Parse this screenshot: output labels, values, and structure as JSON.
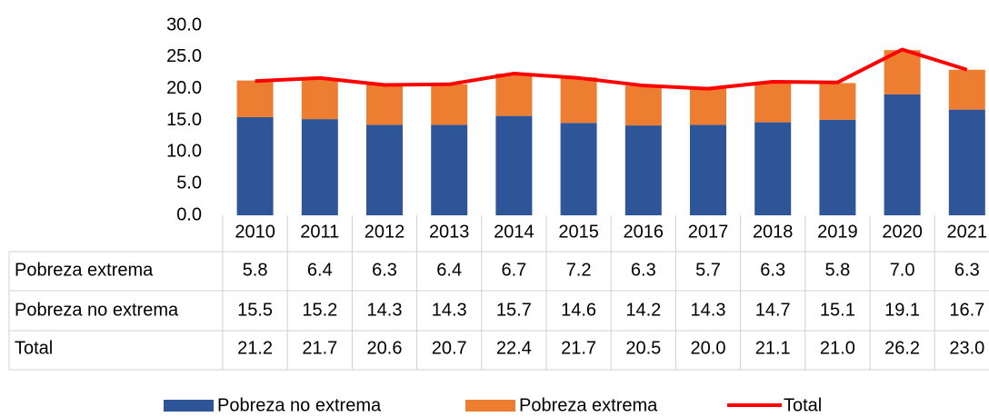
{
  "chart_data": {
    "type": "bar",
    "stacked": true,
    "categories": [
      "2010",
      "2011",
      "2012",
      "2013",
      "2014",
      "2015",
      "2016",
      "2017",
      "2018",
      "2019",
      "2020",
      "2021"
    ],
    "series": [
      {
        "name": "Pobreza extrema",
        "color": "#ed7d31",
        "values": [
          5.8,
          6.4,
          6.3,
          6.4,
          6.7,
          7.2,
          6.3,
          5.7,
          6.3,
          5.8,
          7.0,
          6.3
        ],
        "value_labels": [
          "5.8",
          "6.4",
          "6.3",
          "6.4",
          "6.7",
          "7.2",
          "6.3",
          "5.7",
          "6.3",
          "5.8",
          "7.0",
          "6.3"
        ]
      },
      {
        "name": "Pobreza no extrema",
        "color": "#2e5597",
        "values": [
          15.5,
          15.2,
          14.3,
          14.3,
          15.7,
          14.6,
          14.2,
          14.3,
          14.7,
          15.1,
          19.1,
          16.7
        ],
        "value_labels": [
          "15.5",
          "15.2",
          "14.3",
          "14.3",
          "15.7",
          "14.6",
          "14.2",
          "14.3",
          "14.7",
          "15.1",
          "19.1",
          "16.7"
        ]
      },
      {
        "name": "Total",
        "color": "#ff0000",
        "type": "line",
        "values": [
          21.2,
          21.7,
          20.6,
          20.7,
          22.4,
          21.7,
          20.5,
          20.0,
          21.1,
          21.0,
          26.2,
          23.0
        ],
        "value_labels": [
          "21.2",
          "21.7",
          "20.6",
          "20.7",
          "22.4",
          "21.7",
          "20.5",
          "20.0",
          "21.1",
          "21.0",
          "26.2",
          "23.0"
        ]
      }
    ],
    "ylim": [
      0,
      30
    ],
    "yticks": [
      {
        "value": 0,
        "label": "0.0"
      },
      {
        "value": 5,
        "label": "5.0"
      },
      {
        "value": 10,
        "label": "10.0"
      },
      {
        "value": 15,
        "label": "15.0"
      },
      {
        "value": 20,
        "label": "20.0"
      },
      {
        "value": 25,
        "label": "25.0"
      },
      {
        "value": 30,
        "label": "30.0"
      }
    ],
    "grid": false,
    "legend": "bottom"
  }
}
